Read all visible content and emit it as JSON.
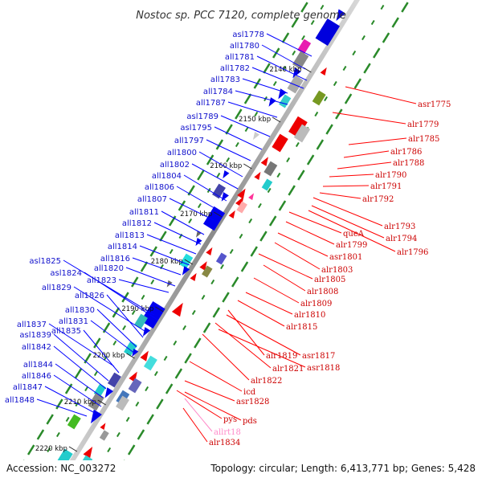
{
  "header": {
    "title": "Nostoc sp. PCC 7120, complete genome"
  },
  "footer": {
    "accession": "Accession: NC_003272",
    "summary": "Topology: circular; Length: 6,413,771 bp; Genes: 5,428"
  },
  "scale_labels": [
    "2140 kbp",
    "2150 kbp",
    "2160 kbp",
    "2170 kbp",
    "2180 kbp",
    "2190 kbp",
    "2200 kbp",
    "2210 kbp",
    "2220 kbp"
  ],
  "left_genes": [
    {
      "name": "asl1778"
    },
    {
      "name": "all1780"
    },
    {
      "name": "all1781"
    },
    {
      "name": "all1782"
    },
    {
      "name": "all1783"
    },
    {
      "name": "all1784"
    },
    {
      "name": "all1787"
    },
    {
      "name": "asl1789"
    },
    {
      "name": "asl1795"
    },
    {
      "name": "all1797"
    },
    {
      "name": "all1800"
    },
    {
      "name": "all1802"
    },
    {
      "name": "all1804"
    },
    {
      "name": "all1806"
    },
    {
      "name": "all1807"
    },
    {
      "name": "all1811"
    },
    {
      "name": "all1812"
    },
    {
      "name": "all1813"
    },
    {
      "name": "all1814"
    },
    {
      "name": "all1816"
    },
    {
      "name": "all1820"
    },
    {
      "name": "asl1825"
    },
    {
      "name": "asl1824"
    },
    {
      "name": "all1823"
    },
    {
      "name": "all1829"
    },
    {
      "name": "all1826"
    },
    {
      "name": "all1830"
    },
    {
      "name": "all1831"
    },
    {
      "name": "all1837"
    },
    {
      "name": "all1835"
    },
    {
      "name": "asl1839"
    },
    {
      "name": "all1842"
    },
    {
      "name": "all1844"
    },
    {
      "name": "all1846"
    },
    {
      "name": "all1847"
    },
    {
      "name": "all1848"
    }
  ],
  "right_genes": [
    {
      "name": "asr1775",
      "color": "red"
    },
    {
      "name": "alr1779",
      "color": "red"
    },
    {
      "name": "alr1785",
      "color": "red"
    },
    {
      "name": "alr1786",
      "color": "red"
    },
    {
      "name": "alr1788",
      "color": "red"
    },
    {
      "name": "alr1790",
      "color": "red"
    },
    {
      "name": "alr1791",
      "color": "red"
    },
    {
      "name": "alr1792",
      "color": "red"
    },
    {
      "name": "alr1793",
      "color": "red"
    },
    {
      "name": "alr1794",
      "color": "red"
    },
    {
      "name": "alr1796",
      "color": "red"
    },
    {
      "name": "queA",
      "color": "red"
    },
    {
      "name": "alr1799",
      "color": "red"
    },
    {
      "name": "asr1801",
      "color": "red"
    },
    {
      "name": "alr1803",
      "color": "red"
    },
    {
      "name": "alr1805",
      "color": "red"
    },
    {
      "name": "alr1808",
      "color": "red"
    },
    {
      "name": "alr1809",
      "color": "red"
    },
    {
      "name": "alr1810",
      "color": "red"
    },
    {
      "name": "alr1815",
      "color": "red"
    },
    {
      "name": "alr1819",
      "color": "red"
    },
    {
      "name": "asr1817",
      "color": "red"
    },
    {
      "name": "alr1821",
      "color": "red"
    },
    {
      "name": "asr1818",
      "color": "red"
    },
    {
      "name": "alr1822",
      "color": "red"
    },
    {
      "name": "icd",
      "color": "red"
    },
    {
      "name": "asr1828",
      "color": "red"
    },
    {
      "name": "pys",
      "color": "red"
    },
    {
      "name": "pds",
      "color": "red"
    },
    {
      "name": "allrt18",
      "color": "pink"
    },
    {
      "name": "alr1834",
      "color": "red"
    }
  ],
  "colors": {
    "forward_strand": "#ee0000",
    "reverse_strand": "#0000ee",
    "label_forward": "#cc0000",
    "label_reverse": "#1010cc",
    "rna_label": "#ff88c8",
    "axis": "#888888",
    "dashes": "#2a8a2a"
  }
}
